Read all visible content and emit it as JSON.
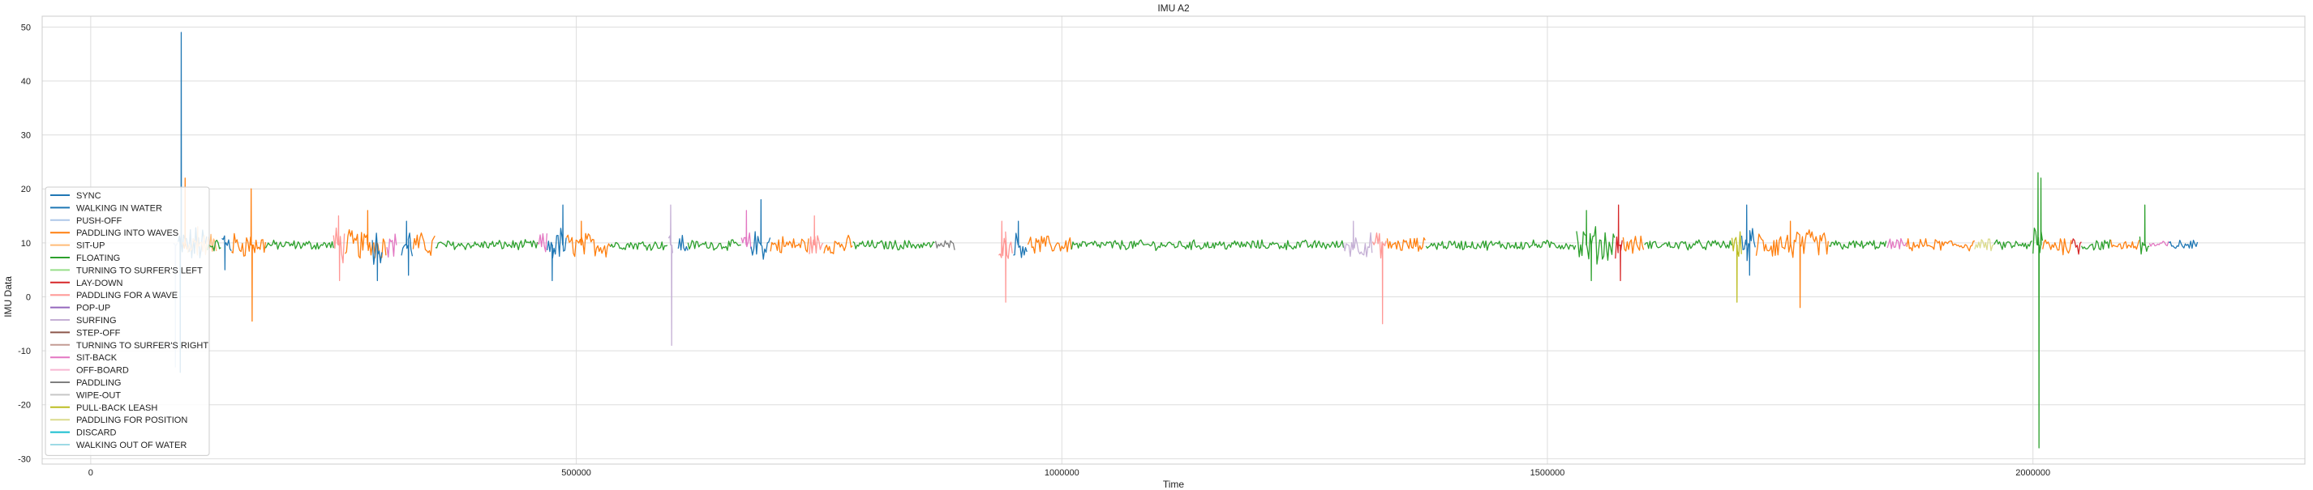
{
  "chart_data": {
    "type": "line",
    "title": "IMU A2",
    "xlabel": "Time",
    "ylabel": "IMU Data",
    "xlim": [
      -50000,
      2280000
    ],
    "ylim": [
      -31,
      52
    ],
    "x_ticks": [
      0,
      500000,
      1000000,
      1500000,
      2000000
    ],
    "x_tick_labels": [
      "0",
      "500000",
      "1000000",
      "1500000",
      "2000000"
    ],
    "y_ticks": [
      -30,
      -20,
      -10,
      0,
      10,
      20,
      30,
      40,
      50
    ],
    "y_tick_labels": [
      "-30",
      "-20",
      "-10",
      "0",
      "10",
      "20",
      "30",
      "40",
      "50"
    ],
    "grid": true,
    "legend_placement": "lower-left",
    "baseline": 9.6,
    "legend": [
      {
        "name": "SYNC",
        "color": "#1f77b4"
      },
      {
        "name": "WALKING IN WATER",
        "color": "#1f77b4"
      },
      {
        "name": "PUSH-OFF",
        "color": "#aec7e8"
      },
      {
        "name": "PADDLING INTO WAVES",
        "color": "#ff7f0e"
      },
      {
        "name": "SIT-UP",
        "color": "#ffbb78"
      },
      {
        "name": "FLOATING",
        "color": "#2ca02c"
      },
      {
        "name": "TURNING TO SURFER'S LEFT",
        "color": "#98df8a"
      },
      {
        "name": "LAY-DOWN",
        "color": "#d62728"
      },
      {
        "name": "PADDLING FOR A WAVE",
        "color": "#ff9896"
      },
      {
        "name": "POP-UP",
        "color": "#9467bd"
      },
      {
        "name": "SURFING",
        "color": "#c5b0d5"
      },
      {
        "name": "STEP-OFF",
        "color": "#8c564b"
      },
      {
        "name": "TURNING TO SURFER'S RIGHT",
        "color": "#c49c94"
      },
      {
        "name": "SIT-BACK",
        "color": "#e377c2"
      },
      {
        "name": "OFF-BOARD",
        "color": "#f7b6d2"
      },
      {
        "name": "PADDLING",
        "color": "#7f7f7f"
      },
      {
        "name": "WIPE-OUT",
        "color": "#c7c7c7"
      },
      {
        "name": "PULL-BACK LEASH",
        "color": "#bcbd22"
      },
      {
        "name": "PADDLING FOR POSITION",
        "color": "#dbdb8d"
      },
      {
        "name": "DISCARD",
        "color": "#17becf"
      },
      {
        "name": "WALKING OUT OF WATER",
        "color": "#9edae5"
      }
    ],
    "segments": [
      {
        "label": "SYNC",
        "x_start": 90000,
        "x_end": 120000,
        "amp": 3,
        "spikes": [
          {
            "x": 93000,
            "y": 49
          },
          {
            "x": 92000,
            "y": -14
          }
        ]
      },
      {
        "label": "PUSH-OFF",
        "x_start": 85000,
        "x_end": 90000,
        "amp": 1,
        "spikes": [
          {
            "x": 87000,
            "y": -13
          }
        ]
      },
      {
        "label": "PADDLING INTO WAVES",
        "x_start": 95000,
        "x_end": 100000,
        "amp": 2,
        "spikes": [
          {
            "x": 97000,
            "y": 22
          }
        ]
      },
      {
        "label": "SIT-UP",
        "x_start": 100000,
        "x_end": 130000,
        "amp": 2,
        "spikes": [
          {
            "x": 110000,
            "y": 13
          }
        ]
      },
      {
        "label": "FLOATING",
        "x_start": 120000,
        "x_end": 135000,
        "amp": 1,
        "spikes": []
      },
      {
        "label": "WALKING IN WATER",
        "x_start": 135000,
        "x_end": 145000,
        "amp": 3,
        "spikes": [
          {
            "x": 138000,
            "y": 5
          }
        ]
      },
      {
        "label": "PADDLING INTO WAVES",
        "x_start": 145000,
        "x_end": 180000,
        "amp": 2,
        "spikes": [
          {
            "x": 165000,
            "y": 20
          },
          {
            "x": 166000,
            "y": -4.5
          }
        ]
      },
      {
        "label": "FLOATING",
        "x_start": 180000,
        "x_end": 250000,
        "amp": 0.8,
        "spikes": []
      },
      {
        "label": "PADDLING FOR A WAVE",
        "x_start": 250000,
        "x_end": 262000,
        "amp": 3,
        "spikes": [
          {
            "x": 255000,
            "y": 15
          },
          {
            "x": 256000,
            "y": 3
          }
        ]
      },
      {
        "label": "PADDLING INTO WAVES",
        "x_start": 262000,
        "x_end": 305000,
        "amp": 2.5,
        "spikes": [
          {
            "x": 285000,
            "y": 16
          }
        ]
      },
      {
        "label": "WALKING IN WATER",
        "x_start": 290000,
        "x_end": 300000,
        "amp": 3,
        "spikes": [
          {
            "x": 295000,
            "y": 3
          }
        ]
      },
      {
        "label": "SIT-BACK",
        "x_start": 305000,
        "x_end": 315000,
        "amp": 2,
        "spikes": []
      },
      {
        "label": "WALKING IN WATER",
        "x_start": 320000,
        "x_end": 332000,
        "amp": 3,
        "spikes": [
          {
            "x": 325000,
            "y": 14
          },
          {
            "x": 327000,
            "y": 4
          }
        ]
      },
      {
        "label": "PADDLING INTO WAVES",
        "x_start": 332000,
        "x_end": 355000,
        "amp": 2,
        "spikes": []
      },
      {
        "label": "FLOATING",
        "x_start": 355000,
        "x_end": 460000,
        "amp": 0.8,
        "spikes": []
      },
      {
        "label": "SIT-BACK",
        "x_start": 460000,
        "x_end": 470000,
        "amp": 2,
        "spikes": []
      },
      {
        "label": "WALKING IN WATER",
        "x_start": 470000,
        "x_end": 490000,
        "amp": 3,
        "spikes": [
          {
            "x": 486000,
            "y": 17
          },
          {
            "x": 475000,
            "y": 3
          }
        ]
      },
      {
        "label": "PADDLING INTO WAVES",
        "x_start": 490000,
        "x_end": 535000,
        "amp": 2,
        "spikes": [
          {
            "x": 505000,
            "y": 14
          }
        ]
      },
      {
        "label": "FLOATING",
        "x_start": 535000,
        "x_end": 595000,
        "amp": 0.8,
        "spikes": []
      },
      {
        "label": "SURFING",
        "x_start": 595000,
        "x_end": 600000,
        "amp": 2,
        "spikes": [
          {
            "x": 597000,
            "y": 17
          },
          {
            "x": 598000,
            "y": -9
          }
        ]
      },
      {
        "label": "WALKING IN WATER",
        "x_start": 605000,
        "x_end": 615000,
        "amp": 2,
        "spikes": []
      },
      {
        "label": "FLOATING",
        "x_start": 615000,
        "x_end": 670000,
        "amp": 0.8,
        "spikes": []
      },
      {
        "label": "SIT-BACK",
        "x_start": 670000,
        "x_end": 680000,
        "amp": 2,
        "spikes": [
          {
            "x": 675000,
            "y": 16
          }
        ]
      },
      {
        "label": "WALKING IN WATER",
        "x_start": 680000,
        "x_end": 700000,
        "amp": 2.5,
        "spikes": [
          {
            "x": 690000,
            "y": 18
          }
        ]
      },
      {
        "label": "PADDLING INTO WAVES",
        "x_start": 700000,
        "x_end": 740000,
        "amp": 1.5,
        "spikes": []
      },
      {
        "label": "PADDLING FOR A WAVE",
        "x_start": 740000,
        "x_end": 755000,
        "amp": 2,
        "spikes": [
          {
            "x": 745000,
            "y": 15
          }
        ]
      },
      {
        "label": "PADDLING INTO WAVES",
        "x_start": 755000,
        "x_end": 785000,
        "amp": 1.5,
        "spikes": []
      },
      {
        "label": "FLOATING",
        "x_start": 785000,
        "x_end": 870000,
        "amp": 0.8,
        "spikes": []
      },
      {
        "label": "PADDLING",
        "x_start": 870000,
        "x_end": 890000,
        "amp": 0.8,
        "spikes": []
      },
      {
        "label": "PADDLING FOR A WAVE",
        "x_start": 935000,
        "x_end": 950000,
        "amp": 2.5,
        "spikes": [
          {
            "x": 938000,
            "y": 14
          },
          {
            "x": 942000,
            "y": -1
          }
        ]
      },
      {
        "label": "WALKING IN WATER",
        "x_start": 950000,
        "x_end": 965000,
        "amp": 2,
        "spikes": [
          {
            "x": 955000,
            "y": 14
          }
        ]
      },
      {
        "label": "PADDLING INTO WAVES",
        "x_start": 965000,
        "x_end": 1010000,
        "amp": 1.5,
        "spikes": []
      },
      {
        "label": "FLOATING",
        "x_start": 1010000,
        "x_end": 1290000,
        "amp": 0.8,
        "spikes": []
      },
      {
        "label": "SURFING",
        "x_start": 1290000,
        "x_end": 1320000,
        "amp": 2,
        "spikes": [
          {
            "x": 1300000,
            "y": 14
          }
        ]
      },
      {
        "label": "PADDLING FOR A WAVE",
        "x_start": 1320000,
        "x_end": 1335000,
        "amp": 2,
        "spikes": [
          {
            "x": 1330000,
            "y": -5
          }
        ]
      },
      {
        "label": "PADDLING INTO WAVES",
        "x_start": 1335000,
        "x_end": 1375000,
        "amp": 1.2,
        "spikes": []
      },
      {
        "label": "FLOATING",
        "x_start": 1375000,
        "x_end": 1530000,
        "amp": 0.8,
        "spikes": []
      },
      {
        "label": "FLOATING",
        "x_start": 1530000,
        "x_end": 1570000,
        "amp": 3,
        "spikes": [
          {
            "x": 1540000,
            "y": 16
          },
          {
            "x": 1545000,
            "y": 3
          }
        ]
      },
      {
        "label": "LAY-DOWN",
        "x_start": 1570000,
        "x_end": 1578000,
        "amp": 2,
        "spikes": [
          {
            "x": 1573000,
            "y": 17
          },
          {
            "x": 1575000,
            "y": 3
          }
        ]
      },
      {
        "label": "PADDLING INTO WAVES",
        "x_start": 1578000,
        "x_end": 1600000,
        "amp": 1.5,
        "spikes": []
      },
      {
        "label": "FLOATING",
        "x_start": 1600000,
        "x_end": 1690000,
        "amp": 0.8,
        "spikes": []
      },
      {
        "label": "PULL-BACK LEASH",
        "x_start": 1690000,
        "x_end": 1700000,
        "amp": 2,
        "spikes": [
          {
            "x": 1695000,
            "y": -1
          }
        ]
      },
      {
        "label": "WALKING IN WATER",
        "x_start": 1700000,
        "x_end": 1715000,
        "amp": 3,
        "spikes": [
          {
            "x": 1705000,
            "y": 17
          },
          {
            "x": 1708000,
            "y": 4
          }
        ]
      },
      {
        "label": "PADDLING INTO WAVES",
        "x_start": 1715000,
        "x_end": 1790000,
        "amp": 2.5,
        "spikes": [
          {
            "x": 1750000,
            "y": 14
          },
          {
            "x": 1760000,
            "y": -2
          }
        ]
      },
      {
        "label": "FLOATING",
        "x_start": 1790000,
        "x_end": 1850000,
        "amp": 0.8,
        "spikes": []
      },
      {
        "label": "SIT-BACK",
        "x_start": 1850000,
        "x_end": 1870000,
        "amp": 1,
        "spikes": []
      },
      {
        "label": "PADDLING INTO WAVES",
        "x_start": 1870000,
        "x_end": 1940000,
        "amp": 1,
        "spikes": []
      },
      {
        "label": "PADDLING FOR POSITION",
        "x_start": 1940000,
        "x_end": 1960000,
        "amp": 1,
        "spikes": []
      },
      {
        "label": "FLOATING",
        "x_start": 1960000,
        "x_end": 2000000,
        "amp": 0.8,
        "spikes": []
      },
      {
        "label": "FLOATING",
        "x_start": 2000000,
        "x_end": 2010000,
        "amp": 4,
        "spikes": [
          {
            "x": 2005000,
            "y": 23
          },
          {
            "x": 2006000,
            "y": -28
          },
          {
            "x": 2008000,
            "y": 22
          }
        ]
      },
      {
        "label": "PADDLING INTO WAVES",
        "x_start": 2010000,
        "x_end": 2040000,
        "amp": 1.5,
        "spikes": []
      },
      {
        "label": "LAY-DOWN",
        "x_start": 2040000,
        "x_end": 2050000,
        "amp": 1.5,
        "spikes": []
      },
      {
        "label": "FLOATING",
        "x_start": 2050000,
        "x_end": 2080000,
        "amp": 1,
        "spikes": []
      },
      {
        "label": "PADDLING INTO WAVES",
        "x_start": 2080000,
        "x_end": 2110000,
        "amp": 1,
        "spikes": []
      },
      {
        "label": "FLOATING",
        "x_start": 2110000,
        "x_end": 2120000,
        "amp": 2,
        "spikes": [
          {
            "x": 2115000,
            "y": 17
          }
        ]
      },
      {
        "label": "SIT-BACK",
        "x_start": 2120000,
        "x_end": 2140000,
        "amp": 0.8,
        "spikes": []
      },
      {
        "label": "WALKING IN WATER",
        "x_start": 2140000,
        "x_end": 2170000,
        "amp": 0.8,
        "spikes": []
      }
    ]
  }
}
